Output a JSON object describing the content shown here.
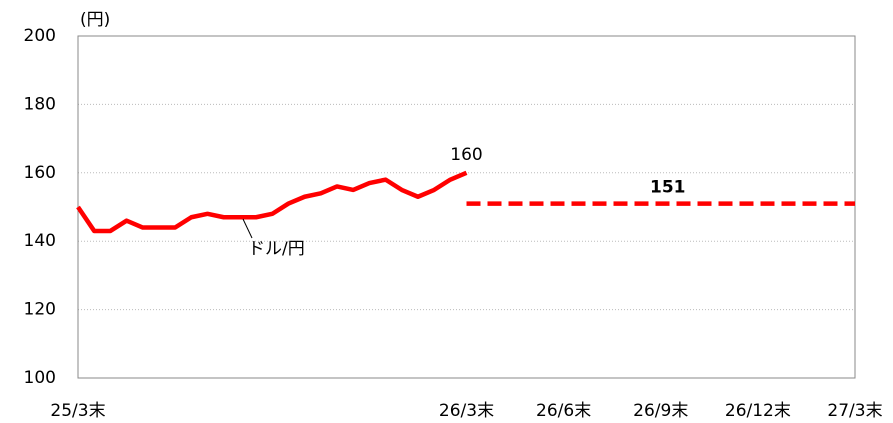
{
  "chart_data": {
    "type": "line",
    "y_unit": "(円)",
    "categories": [
      "25/3末",
      null,
      null,
      null,
      null,
      null,
      null,
      null,
      null,
      null,
      null,
      null,
      null,
      null,
      null,
      null,
      null,
      null,
      null,
      null,
      null,
      null,
      null,
      null,
      "26/3末",
      null,
      null,
      null,
      null,
      null,
      "26/6末",
      null,
      null,
      null,
      null,
      null,
      "26/9末",
      null,
      null,
      null,
      null,
      null,
      "26/12末",
      null,
      null,
      null,
      null,
      null,
      "27/3末"
    ],
    "series": [
      {
        "name": "ドル/円",
        "color": "#ff0000",
        "dash": false,
        "values": [
          150,
          143,
          143,
          146,
          144,
          144,
          144,
          147,
          148,
          147,
          147,
          147,
          148,
          151,
          153,
          154,
          156,
          155,
          157,
          158,
          155,
          153,
          155,
          158,
          160,
          null,
          null,
          null,
          null,
          null,
          null,
          null,
          null,
          null,
          null,
          null,
          null,
          null,
          null,
          null,
          null,
          null,
          null,
          null,
          null,
          null,
          null,
          null,
          null
        ]
      },
      {
        "color": "#ff0000",
        "dash": true,
        "values": [
          null,
          null,
          null,
          null,
          null,
          null,
          null,
          null,
          null,
          null,
          null,
          null,
          null,
          null,
          null,
          null,
          null,
          null,
          null,
          null,
          null,
          null,
          null,
          null,
          151,
          151,
          151,
          151,
          151,
          151,
          151,
          151,
          151,
          151,
          151,
          151,
          151,
          151,
          151,
          151,
          151,
          151,
          151,
          151,
          151,
          151,
          151,
          151,
          151
        ]
      }
    ],
    "ylim": [
      100,
      200
    ],
    "yticks": [
      100,
      120,
      140,
      160,
      180,
      200
    ],
    "grid": true
  }
}
